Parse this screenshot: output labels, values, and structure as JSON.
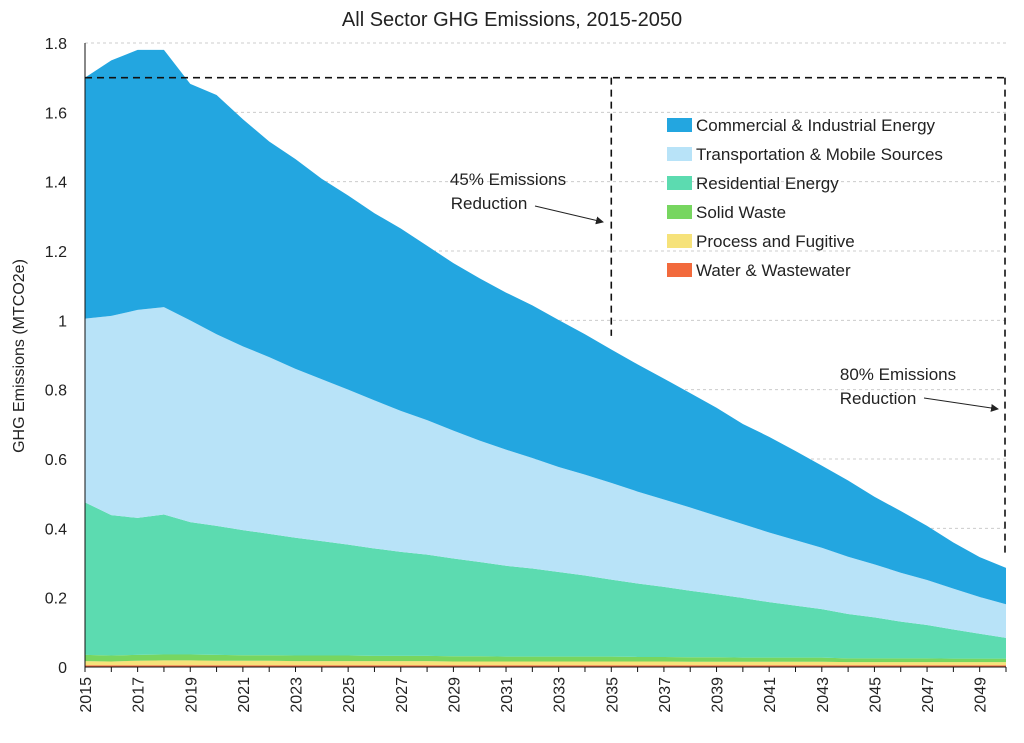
{
  "chart_data": {
    "type": "area",
    "stacked": true,
    "title": "All Sector GHG Emissions, 2015-2050",
    "xlabel": "",
    "ylabel": "GHG Emissions (MTCO2e)",
    "xlim": [
      2015,
      2050
    ],
    "ylim": [
      0,
      1.8
    ],
    "yticks": [
      0,
      0.2,
      0.4,
      0.6,
      0.8,
      1,
      1.2,
      1.4,
      1.6,
      1.8
    ],
    "ytick_labels": [
      "0",
      "0.2",
      "0.4",
      "0.6",
      "0.8",
      "1",
      "1.2",
      "1.4",
      "1.6",
      "1.8"
    ],
    "xticks": [
      2015,
      2017,
      2019,
      2021,
      2023,
      2025,
      2027,
      2029,
      2031,
      2033,
      2035,
      2037,
      2039,
      2041,
      2043,
      2045,
      2047,
      2049
    ],
    "grid": "horizontal-dashed",
    "legend_position": "top-right",
    "x": [
      2015,
      2016,
      2017,
      2018,
      2019,
      2020,
      2021,
      2022,
      2023,
      2024,
      2025,
      2026,
      2027,
      2028,
      2029,
      2030,
      2031,
      2032,
      2033,
      2034,
      2035,
      2036,
      2037,
      2038,
      2039,
      2040,
      2041,
      2042,
      2043,
      2044,
      2045,
      2046,
      2047,
      2048,
      2049,
      2050
    ],
    "series": [
      {
        "name": "Water & Wastewater",
        "color": "#f26a3c",
        "values": [
          0.005,
          0.005,
          0.005,
          0.005,
          0.005,
          0.005,
          0.005,
          0.005,
          0.005,
          0.005,
          0.005,
          0.005,
          0.005,
          0.005,
          0.005,
          0.005,
          0.005,
          0.005,
          0.005,
          0.005,
          0.005,
          0.005,
          0.005,
          0.005,
          0.005,
          0.005,
          0.005,
          0.005,
          0.005,
          0.005,
          0.005,
          0.005,
          0.005,
          0.005,
          0.005,
          0.005
        ]
      },
      {
        "name": "Process and Fugitive",
        "color": "#f6e27a",
        "values": [
          0.012,
          0.011,
          0.013,
          0.014,
          0.014,
          0.013,
          0.013,
          0.013,
          0.012,
          0.012,
          0.012,
          0.012,
          0.012,
          0.012,
          0.011,
          0.011,
          0.011,
          0.011,
          0.011,
          0.011,
          0.011,
          0.011,
          0.011,
          0.01,
          0.01,
          0.01,
          0.01,
          0.01,
          0.01,
          0.009,
          0.009,
          0.009,
          0.009,
          0.009,
          0.009,
          0.009
        ]
      },
      {
        "name": "Solid Waste",
        "color": "#77d660",
        "values": [
          0.018,
          0.017,
          0.017,
          0.017,
          0.017,
          0.017,
          0.016,
          0.016,
          0.016,
          0.016,
          0.016,
          0.015,
          0.015,
          0.015,
          0.015,
          0.015,
          0.014,
          0.014,
          0.014,
          0.014,
          0.014,
          0.013,
          0.013,
          0.013,
          0.013,
          0.012,
          0.012,
          0.012,
          0.012,
          0.011,
          0.011,
          0.011,
          0.011,
          0.01,
          0.01,
          0.01
        ]
      },
      {
        "name": "Residential Energy",
        "color": "#5cdbb0",
        "values": [
          0.44,
          0.405,
          0.395,
          0.404,
          0.382,
          0.372,
          0.361,
          0.35,
          0.34,
          0.33,
          0.32,
          0.31,
          0.3,
          0.292,
          0.282,
          0.272,
          0.262,
          0.254,
          0.244,
          0.234,
          0.222,
          0.212,
          0.202,
          0.192,
          0.182,
          0.172,
          0.16,
          0.15,
          0.14,
          0.128,
          0.118,
          0.106,
          0.096,
          0.084,
          0.072,
          0.06
        ]
      },
      {
        "name": "Transportation & Mobile Sources",
        "color": "#b8e3f8",
        "values": [
          0.53,
          0.575,
          0.6,
          0.598,
          0.582,
          0.553,
          0.53,
          0.51,
          0.487,
          0.467,
          0.447,
          0.427,
          0.407,
          0.388,
          0.369,
          0.35,
          0.335,
          0.319,
          0.303,
          0.291,
          0.279,
          0.265,
          0.252,
          0.24,
          0.226,
          0.213,
          0.201,
          0.189,
          0.177,
          0.165,
          0.153,
          0.141,
          0.13,
          0.118,
          0.106,
          0.097
        ]
      },
      {
        "name": "Commercial & Industrial Energy",
        "color": "#23a6e0",
        "values": [
          0.695,
          0.737,
          0.75,
          0.742,
          0.682,
          0.69,
          0.655,
          0.622,
          0.605,
          0.578,
          0.56,
          0.54,
          0.526,
          0.503,
          0.483,
          0.468,
          0.453,
          0.44,
          0.424,
          0.405,
          0.385,
          0.367,
          0.349,
          0.33,
          0.312,
          0.289,
          0.276,
          0.257,
          0.237,
          0.22,
          0.195,
          0.178,
          0.156,
          0.133,
          0.115,
          0.105
        ]
      }
    ],
    "legend_order": [
      "Commercial & Industrial Energy",
      "Transportation & Mobile Sources",
      "Residential Energy",
      "Solid Waste",
      "Process and Fugitive",
      "Water & Wastewater"
    ],
    "annotations": [
      {
        "lines": [
          "45% Emissions",
          "Reduction"
        ],
        "target_x": 2035,
        "level": 1.7
      },
      {
        "lines": [
          "80% Emissions",
          "Reduction"
        ],
        "target_x": 2050,
        "level": 1.7
      }
    ]
  }
}
